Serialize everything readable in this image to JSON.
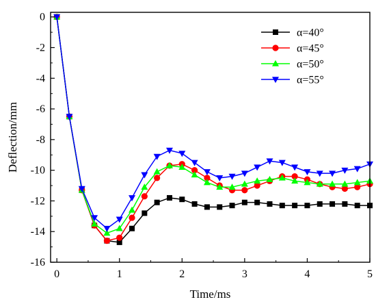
{
  "chart_data": {
    "type": "line",
    "xlabel": "Time/ms",
    "ylabel": "Deflection/mm",
    "xlim": [
      -0.1,
      5
    ],
    "ylim": [
      -16,
      0.3
    ],
    "xticks": [
      0,
      1,
      2,
      3,
      4,
      5
    ],
    "yticks": [
      0,
      -2,
      -4,
      -6,
      -8,
      -10,
      -12,
      -14,
      -16
    ],
    "x": [
      0,
      0.2,
      0.4,
      0.6,
      0.8,
      1.0,
      1.2,
      1.4,
      1.6,
      1.8,
      2.0,
      2.2,
      2.4,
      2.6,
      2.8,
      3.0,
      3.2,
      3.4,
      3.6,
      3.8,
      4.0,
      4.2,
      4.4,
      4.6,
      4.8,
      5.0
    ],
    "legend_position": "top-right",
    "grid": false,
    "series": [
      {
        "name": "α=40°",
        "color": "#000000",
        "marker": "square",
        "values": [
          0,
          -6.5,
          -11.3,
          -13.6,
          -14.6,
          -14.7,
          -13.8,
          -12.8,
          -12.1,
          -11.8,
          -11.9,
          -12.2,
          -12.4,
          -12.4,
          -12.3,
          -12.1,
          -12.1,
          -12.2,
          -12.3,
          -12.3,
          -12.3,
          -12.2,
          -12.2,
          -12.2,
          -12.3,
          -12.3
        ]
      },
      {
        "name": "α=45°",
        "color": "#ff0000",
        "marker": "circle",
        "values": [
          0,
          -6.5,
          -11.3,
          -13.6,
          -14.6,
          -14.4,
          -13.1,
          -11.7,
          -10.5,
          -9.7,
          -9.6,
          -10.0,
          -10.5,
          -11.0,
          -11.3,
          -11.3,
          -11.0,
          -10.7,
          -10.4,
          -10.4,
          -10.6,
          -10.9,
          -11.1,
          -11.2,
          -11.1,
          -10.9
        ]
      },
      {
        "name": "α=50°",
        "color": "#00ff00",
        "marker": "triangle-up",
        "values": [
          0,
          -6.5,
          -11.3,
          -13.5,
          -14.1,
          -13.8,
          -12.6,
          -11.1,
          -10.1,
          -9.7,
          -9.8,
          -10.3,
          -10.8,
          -11.1,
          -11.1,
          -10.9,
          -10.7,
          -10.6,
          -10.5,
          -10.7,
          -10.8,
          -10.9,
          -10.9,
          -10.9,
          -10.8,
          -10.7
        ]
      },
      {
        "name": "α=55°",
        "color": "#0000ff",
        "marker": "triangle-down",
        "values": [
          0,
          -6.5,
          -11.2,
          -13.1,
          -13.8,
          -13.2,
          -11.8,
          -10.3,
          -9.1,
          -8.7,
          -8.9,
          -9.5,
          -10.1,
          -10.5,
          -10.4,
          -10.2,
          -9.8,
          -9.4,
          -9.5,
          -9.8,
          -10.1,
          -10.2,
          -10.2,
          -10.0,
          -9.9,
          -9.6
        ]
      }
    ]
  }
}
